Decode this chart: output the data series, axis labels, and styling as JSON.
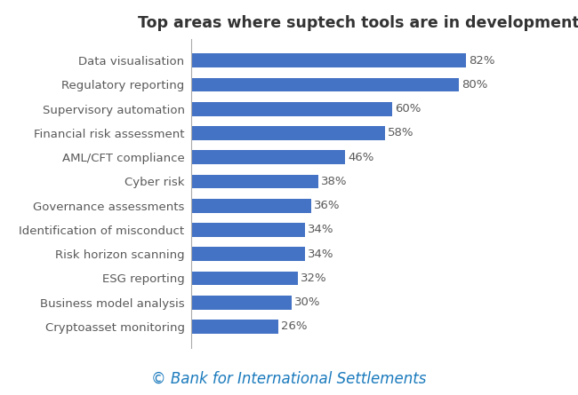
{
  "title": "Top areas where suptech tools are in development",
  "categories": [
    "Data visualisation",
    "Regulatory reporting",
    "Supervisory automation",
    "Financial risk assessment",
    "AML/CFT compliance",
    "Cyber risk",
    "Governance assessments",
    "Identification of misconduct",
    "Risk horizon scanning",
    "ESG reporting",
    "Business model analysis",
    "Cryptoasset monitoring"
  ],
  "values": [
    82,
    80,
    60,
    58,
    46,
    38,
    36,
    34,
    34,
    32,
    30,
    26
  ],
  "bar_color": "#4472C4",
  "label_color": "#595959",
  "title_color": "#333333",
  "footer_color": "#1a7abd",
  "footer_text": "© Bank for International Settlements",
  "background_color": "#ffffff",
  "xlim": [
    0,
    100
  ],
  "bar_height": 0.58,
  "title_fontsize": 12.5,
  "label_fontsize": 9.5,
  "value_fontsize": 9.5,
  "footer_fontsize": 12
}
